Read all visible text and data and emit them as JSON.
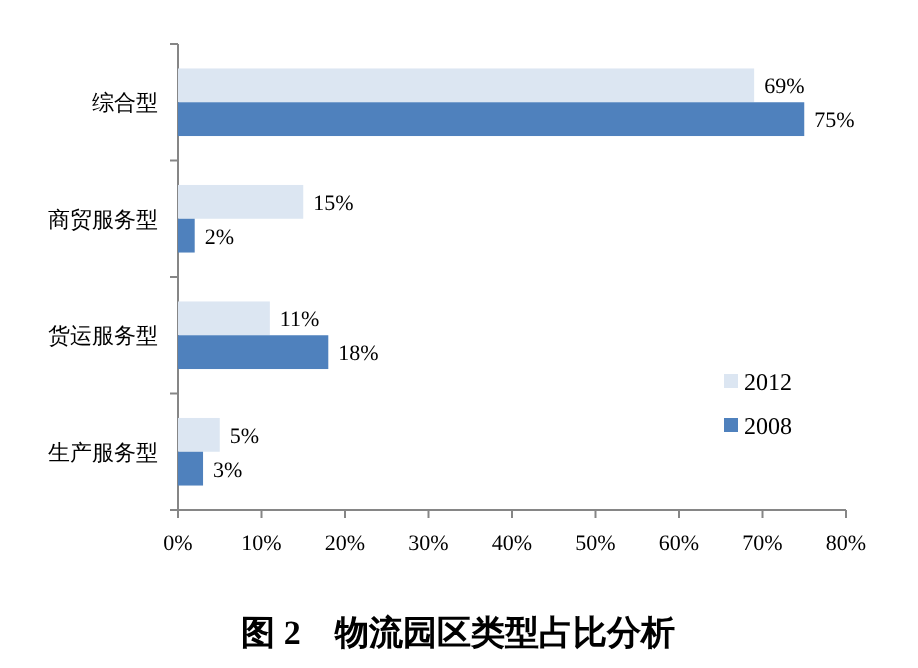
{
  "chart_data": {
    "type": "bar",
    "orientation": "horizontal",
    "title": "图 2　物流园区类型占比分析",
    "categories": [
      "综合型",
      "商贸服务型",
      "货运服务型",
      "生产服务型"
    ],
    "series": [
      {
        "name": "2012",
        "color": "#dce6f2",
        "values": [
          69,
          15,
          11,
          5
        ],
        "value_labels": [
          "69%",
          "15%",
          "11%",
          "5%"
        ]
      },
      {
        "name": "2008",
        "color": "#4f81bd",
        "values": [
          75,
          2,
          18,
          3
        ],
        "value_labels": [
          "75%",
          "2%",
          "18%",
          "3%"
        ]
      }
    ],
    "xlim": [
      0,
      80
    ],
    "xticks": [
      {
        "value": 0,
        "label": "0%"
      },
      {
        "value": 10,
        "label": "10%"
      },
      {
        "value": 20,
        "label": "20%"
      },
      {
        "value": 30,
        "label": "30%"
      },
      {
        "value": 40,
        "label": "40%"
      },
      {
        "value": 50,
        "label": "50%"
      },
      {
        "value": 60,
        "label": "60%"
      },
      {
        "value": 70,
        "label": "70%"
      },
      {
        "value": 80,
        "label": "80%"
      }
    ],
    "legend": "bottom right"
  }
}
